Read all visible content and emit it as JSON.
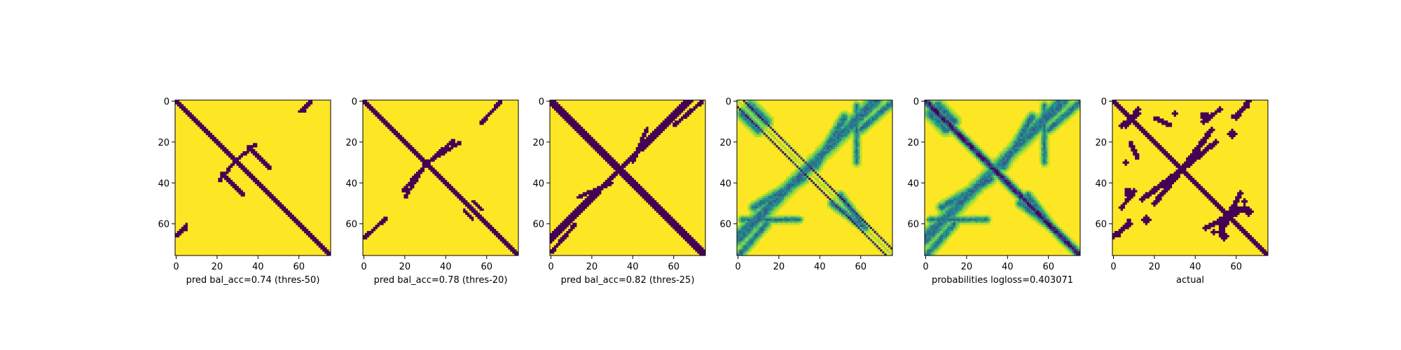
{
  "figure": {
    "colors": {
      "background": "#fde725",
      "contact": "#440154",
      "mid_teal": "#21918c",
      "mid_green": "#5ec962",
      "light_green": "#b5de2b"
    }
  },
  "chart_data": [
    {
      "type": "heatmap",
      "xlabel": "pred bal_acc=0.74 (thres-50)",
      "xticks": [
        0,
        20,
        40,
        60
      ],
      "yticks": [
        0,
        20,
        40,
        60
      ],
      "xlim": [
        0,
        76
      ],
      "ylim": [
        76,
        0
      ],
      "mode": "binary",
      "main_diag_halfwidth": 1.5,
      "bands": [
        {
          "x": [
            21,
            30
          ],
          "y": [
            39,
            28
          ],
          "w": 0.8
        },
        {
          "x": [
            35,
            46
          ],
          "y": [
            22,
            33
          ],
          "w": 0.8
        },
        {
          "x": [
            60,
            66
          ],
          "y": [
            5,
            0
          ],
          "w": 0.7
        },
        {
          "x": [
            0,
            5
          ],
          "y": [
            66,
            62
          ],
          "w": 0.8
        }
      ]
    },
    {
      "type": "heatmap",
      "xlabel": "pred bal_acc=0.78 (thres-20)",
      "xticks": [
        0,
        20,
        40,
        60
      ],
      "yticks": [
        0,
        20,
        40,
        60
      ],
      "xlim": [
        0,
        76
      ],
      "ylim": [
        76,
        0
      ],
      "mode": "binary",
      "main_diag_halfwidth": 1.6,
      "bands": [
        {
          "x": [
            19,
            31
          ],
          "y": [
            44,
            30
          ],
          "w": 0.9
        },
        {
          "x": [
            31,
            47
          ],
          "y": [
            30,
            20
          ],
          "w": 0.9
        },
        {
          "x": [
            58,
            66
          ],
          "y": [
            10,
            1
          ],
          "w": 0.8
        },
        {
          "x": [
            0,
            11
          ],
          "y": [
            67,
            57
          ],
          "w": 0.9
        },
        {
          "x": [
            53,
            58
          ],
          "y": [
            49,
            53
          ],
          "w": 0.7
        }
      ]
    },
    {
      "type": "heatmap",
      "xlabel": "pred bal_acc=0.82 (thres-25)",
      "xticks": [
        0,
        20,
        40,
        60
      ],
      "yticks": [
        0,
        20,
        40,
        60
      ],
      "xlim": [
        0,
        76
      ],
      "ylim": [
        76,
        0
      ],
      "mode": "binary",
      "main_diag_halfwidth": 2.0,
      "bands": [
        {
          "x": [
            0,
            34
          ],
          "y": [
            68,
            33
          ],
          "w": 1.2
        },
        {
          "x": [
            34,
            66
          ],
          "y": [
            33,
            0
          ],
          "w": 1.2
        },
        {
          "x": [
            46,
            62
          ],
          "y": [
            22,
            6
          ],
          "w": 0.9
        },
        {
          "x": [
            13,
            30
          ],
          "y": [
            47,
            40
          ],
          "w": 0.9
        },
        {
          "x": [
            0,
            12
          ],
          "y": [
            74,
            60
          ],
          "w": 0.9
        },
        {
          "x": [
            50,
            60
          ],
          "y": [
            51,
            60
          ],
          "w": 0.8
        }
      ]
    },
    {
      "type": "heatmap",
      "xlabel": "",
      "xticks": [
        0,
        20,
        40,
        60
      ],
      "yticks": [
        0,
        20,
        40,
        60
      ],
      "xlim": [
        0,
        76
      ],
      "ylim": [
        76,
        0
      ],
      "mode": "prob",
      "main_diag_halfwidth": 0.8,
      "off_diag_offset": 3,
      "bands": [
        {
          "x": [
            0,
            34
          ],
          "y": [
            68,
            33
          ],
          "w": 2.2
        },
        {
          "x": [
            34,
            66
          ],
          "y": [
            33,
            0
          ],
          "w": 2.2
        },
        {
          "x": [
            43,
            62
          ],
          "y": [
            24,
            5
          ],
          "w": 1.8
        },
        {
          "x": [
            8,
            32
          ],
          "y": [
            52,
            38
          ],
          "w": 1.8
        },
        {
          "x": [
            0,
            14
          ],
          "y": [
            76,
            60
          ],
          "w": 1.6
        },
        {
          "x": [
            46,
            62
          ],
          "y": [
            50,
            62
          ],
          "w": 1.5
        },
        {
          "x": [
            2,
            30
          ],
          "y": [
            58,
            58
          ],
          "w": 1.2
        },
        {
          "x": [
            6,
            14
          ],
          "y": [
            2,
            10
          ],
          "w": 2.0
        }
      ]
    },
    {
      "type": "heatmap",
      "xlabel": "probabilities logloss=0.403071",
      "xticks": [
        0,
        20,
        40,
        60
      ],
      "yticks": [
        0,
        20,
        40,
        60
      ],
      "xlim": [
        0,
        76
      ],
      "ylim": [
        76,
        0
      ],
      "mode": "prob",
      "main_diag_halfwidth": 2.0,
      "bands": [
        {
          "x": [
            0,
            34
          ],
          "y": [
            68,
            33
          ],
          "w": 2.2
        },
        {
          "x": [
            34,
            66
          ],
          "y": [
            33,
            0
          ],
          "w": 2.2
        },
        {
          "x": [
            43,
            62
          ],
          "y": [
            24,
            5
          ],
          "w": 1.8
        },
        {
          "x": [
            8,
            32
          ],
          "y": [
            52,
            38
          ],
          "w": 1.8
        },
        {
          "x": [
            0,
            14
          ],
          "y": [
            76,
            60
          ],
          "w": 1.6
        },
        {
          "x": [
            46,
            62
          ],
          "y": [
            50,
            62
          ],
          "w": 1.5
        },
        {
          "x": [
            2,
            30
          ],
          "y": [
            58,
            58
          ],
          "w": 1.2
        },
        {
          "x": [
            6,
            14
          ],
          "y": [
            2,
            10
          ],
          "w": 2.0
        }
      ]
    },
    {
      "type": "heatmap",
      "xlabel": "actual",
      "xticks": [
        0,
        20,
        40,
        60
      ],
      "yticks": [
        0,
        20,
        40,
        60
      ],
      "xlim": [
        0,
        76
      ],
      "ylim": [
        76,
        0
      ],
      "mode": "binary",
      "main_diag_halfwidth": 1.8,
      "bands": [
        {
          "x": [
            14,
            34
          ],
          "y": [
            48,
            33
          ],
          "w": 1.2
        },
        {
          "x": [
            34,
            50
          ],
          "y": [
            33,
            20
          ],
          "w": 1.2
        },
        {
          "x": [
            58,
            66
          ],
          "y": [
            8,
            2
          ],
          "w": 0.9
        },
        {
          "x": [
            4,
            12
          ],
          "y": [
            12,
            6
          ],
          "w": 1.2
        },
        {
          "x": [
            56,
            62
          ],
          "y": [
            56,
            45
          ],
          "w": 1.1
        },
        {
          "x": [
            52,
            64
          ],
          "y": [
            60,
            52
          ],
          "w": 1.2
        },
        {
          "x": [
            0,
            8
          ],
          "y": [
            66,
            60
          ],
          "w": 1.0
        },
        {
          "x": [
            44,
            52
          ],
          "y": [
            10,
            4
          ],
          "w": 1.0
        },
        {
          "x": [
            20,
            28
          ],
          "y": [
            8,
            12
          ],
          "w": 0.9
        }
      ],
      "blobs": [
        {
          "x": 8,
          "y": 46,
          "r": 2.2
        },
        {
          "x": 16,
          "y": 58,
          "r": 2.0
        },
        {
          "x": 44,
          "y": 7,
          "r": 1.8
        },
        {
          "x": 66,
          "y": 54,
          "r": 2.0
        },
        {
          "x": 30,
          "y": 6,
          "r": 1.3
        },
        {
          "x": 49,
          "y": 64,
          "r": 1.2
        }
      ]
    }
  ]
}
